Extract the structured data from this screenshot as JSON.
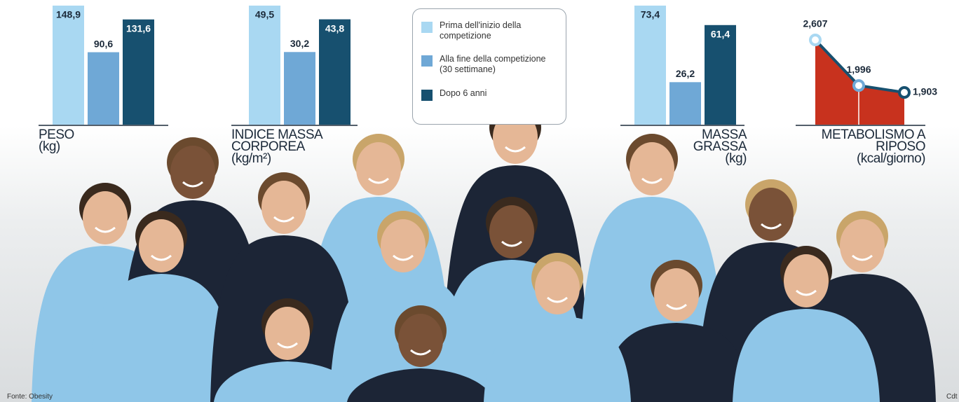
{
  "legend": [
    {
      "name": "Prima dell'inizio della competizione",
      "color": "#a9d8f2"
    },
    {
      "name": "Alla fine della competizione (30 settimane)",
      "color": "#6fa8d6"
    },
    {
      "name": "Dopo 6 anni",
      "color": "#17506f"
    }
  ],
  "chart_data": [
    {
      "type": "bar",
      "title": "PESO",
      "subtitle": "(kg)",
      "values": [
        148.9,
        90.6,
        131.6
      ],
      "value_labels": [
        "148,9",
        "90,6",
        "131,6"
      ]
    },
    {
      "type": "bar",
      "title": "INDICE MASSA CORPOREA",
      "subtitle": "(kg/m²)",
      "values": [
        49.5,
        30.2,
        43.8
      ],
      "value_labels": [
        "49,5",
        "30,2",
        "43,8"
      ]
    },
    {
      "type": "bar",
      "title": "MASSA GRASSA",
      "subtitle": "(kg)",
      "values": [
        73.4,
        26.2,
        61.4
      ],
      "value_labels": [
        "73,4",
        "26,2",
        "61,4"
      ]
    },
    {
      "type": "area",
      "title": "METABOLISMO A RIPOSO",
      "subtitle": "(kcal/giorno)",
      "values": [
        2607,
        1996,
        1903
      ],
      "value_labels": [
        "2,607",
        "1,996",
        "1,903"
      ],
      "color": "#c8321e",
      "line_color": "#17506f"
    }
  ],
  "source": "Fonte: Obesity",
  "credit": "Cdt"
}
